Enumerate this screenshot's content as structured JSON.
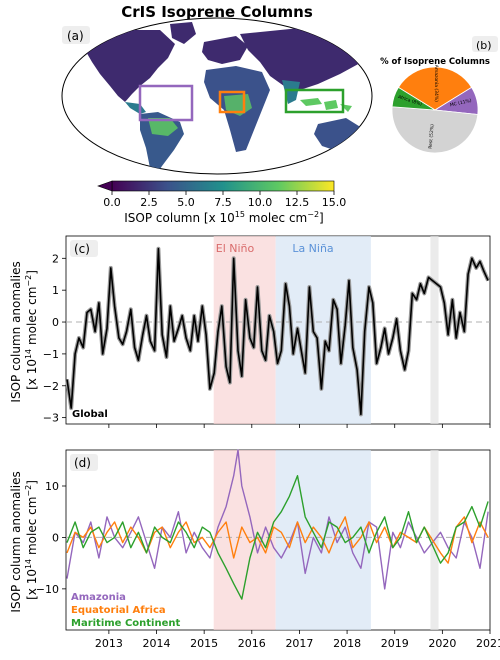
{
  "title": "CrIS Isoprene Columns",
  "panel_a": {
    "label": "(a)",
    "colorbar": {
      "ticks": [
        "0.0",
        "2.5",
        "5.0",
        "7.5",
        "10.0",
        "12.5",
        "15.0"
      ],
      "label_main": "ISOP column [x 10",
      "label_exp": "15",
      "label_units": " molec cm",
      "label_unit_exp": "−2",
      "label_close": "]",
      "colors": [
        "#440154",
        "#3b528b",
        "#21918c",
        "#5ec962",
        "#fde725"
      ]
    },
    "boxes": [
      {
        "name": "Amazonia",
        "color": "#9467bd"
      },
      {
        "name": "Equatorial Africa",
        "color": "#ff7f0e"
      },
      {
        "name": "Maritime Continent",
        "color": "#2ca02c"
      }
    ]
  },
  "panel_b": {
    "label": "(b)",
    "title": "% of Isoprene Columns",
    "slices": [
      {
        "label": "Amazonia",
        "pct_label": "(34%)",
        "value": 34,
        "color": "#ff7f0e"
      },
      {
        "label": "MC (11%)",
        "value": 11,
        "color": "#9467bd"
      },
      {
        "label": "Rest",
        "pct_label": "(52%)",
        "value": 52,
        "color": "#d3d3d3"
      },
      {
        "label": "Africa (8%)",
        "value": 8,
        "color": "#2ca02c"
      }
    ]
  },
  "panel_c": {
    "label": "(c)",
    "ylabel_line1": "ISOP column anomalies",
    "ylabel_line2_pre": "[x 10",
    "ylabel_exp": "14",
    "ylabel_mid": " molec cm",
    "ylabel_exp2": "−2",
    "ylabel_close": "]",
    "series_label": "Global",
    "el_nino": "El Niño",
    "la_nina": "La Niña",
    "yticks": [
      "2",
      "1",
      "0",
      "−1",
      "−2",
      "−3"
    ]
  },
  "panel_d": {
    "label": "(d)",
    "ylabel_line1": "ISOP column anomalies",
    "ylabel_line2_pre": "[x 10",
    "ylabel_exp": "14",
    "ylabel_mid": " molec cm",
    "ylabel_exp2": "−2",
    "ylabel_close": "]",
    "yticks": [
      "10",
      "0",
      "−10"
    ],
    "legend": [
      {
        "name": "Amazonia",
        "color": "#9467bd"
      },
      {
        "name": "Equatorial Africa",
        "color": "#ff7f0e"
      },
      {
        "name": "Maritime Continent",
        "color": "#2ca02c"
      }
    ]
  },
  "xticks": [
    "2013",
    "2014",
    "2015",
    "2016",
    "2017",
    "2018",
    "2019",
    "2020",
    "2021"
  ],
  "chart_data": [
    {
      "type": "pie",
      "title": "% of Isoprene Columns",
      "categories": [
        "Amazonia",
        "MC",
        "Rest",
        "Africa"
      ],
      "values": [
        34,
        11,
        52,
        8
      ]
    },
    {
      "type": "line",
      "xlim": [
        2012.1,
        2021.0
      ],
      "ylim": [
        -3.2,
        2.7
      ],
      "shaded_periods": [
        {
          "label": "El Niño",
          "x": [
            2015.2,
            2016.5
          ],
          "color": "#f8d4d4"
        },
        {
          "label": "La Niña",
          "x": [
            2016.5,
            2018.5
          ],
          "color": "#d6e4f3"
        },
        {
          "label": "",
          "x": [
            2019.75,
            2019.92
          ],
          "color": "#e2e2e2"
        }
      ],
      "series": [
        {
          "name": "Global",
          "color": "#000000",
          "x": [
            2012.12,
            2012.21,
            2012.29,
            2012.37,
            2012.46,
            2012.54,
            2012.62,
            2012.71,
            2012.79,
            2012.87,
            2012.96,
            2013.04,
            2013.12,
            2013.21,
            2013.29,
            2013.37,
            2013.46,
            2013.54,
            2013.62,
            2013.71,
            2013.79,
            2013.87,
            2013.96,
            2014.04,
            2014.12,
            2014.21,
            2014.29,
            2014.37,
            2014.46,
            2014.54,
            2014.62,
            2014.71,
            2014.79,
            2014.87,
            2014.96,
            2015.04,
            2015.12,
            2015.21,
            2015.29,
            2015.37,
            2015.46,
            2015.54,
            2015.62,
            2015.71,
            2015.79,
            2015.87,
            2015.96,
            2016.04,
            2016.12,
            2016.21,
            2016.29,
            2016.37,
            2016.46,
            2016.54,
            2016.62,
            2016.71,
            2016.79,
            2016.87,
            2016.96,
            2017.04,
            2017.12,
            2017.21,
            2017.29,
            2017.37,
            2017.46,
            2017.54,
            2017.62,
            2017.71,
            2017.79,
            2017.87,
            2017.96,
            2018.04,
            2018.12,
            2018.21,
            2018.29,
            2018.37,
            2018.46,
            2018.54,
            2018.62,
            2018.71,
            2018.79,
            2018.87,
            2018.96,
            2019.04,
            2019.12,
            2019.21,
            2019.29,
            2019.37,
            2019.46,
            2019.54,
            2019.62,
            2019.71,
            2019.96,
            2020.04,
            2020.12,
            2020.21,
            2020.29,
            2020.37,
            2020.46,
            2020.54,
            2020.62,
            2020.71,
            2020.79,
            2020.87,
            2020.96
          ],
          "y": [
            -1.8,
            -2.7,
            -1.0,
            -0.5,
            -0.8,
            0.3,
            0.4,
            -0.3,
            0.6,
            -1.0,
            -0.2,
            1.7,
            0.5,
            -0.5,
            -0.7,
            -0.3,
            0.4,
            -0.8,
            -1.2,
            -0.4,
            0.2,
            -0.6,
            -0.9,
            2.3,
            -0.4,
            -1.1,
            0.5,
            -0.6,
            -0.2,
            0.2,
            -0.5,
            -0.9,
            0.2,
            -0.6,
            0.5,
            -0.4,
            -2.1,
            -1.6,
            -0.3,
            0.5,
            -1.4,
            -1.9,
            2.0,
            -0.9,
            -1.7,
            0.7,
            -0.5,
            -0.8,
            1.1,
            -0.9,
            -1.2,
            0.2,
            -0.3,
            -1.3,
            -0.9,
            1.2,
            0.5,
            -1.0,
            -0.2,
            -0.9,
            -1.6,
            1.1,
            -0.3,
            -0.5,
            -2.1,
            -0.6,
            -0.9,
            0.7,
            0.4,
            -1.3,
            -0.1,
            1.3,
            -0.8,
            -1.5,
            -2.9,
            -0.3,
            1.1,
            0.6,
            -1.3,
            -0.8,
            -0.2,
            -1.0,
            -0.5,
            0.1,
            -0.9,
            -1.5,
            -0.9,
            0.9,
            0.7,
            1.2,
            0.9,
            1.4,
            1.1,
            0.6,
            -0.4,
            0.7,
            -0.5,
            0.3,
            -0.3,
            1.5,
            2.0,
            1.7,
            1.9,
            1.6,
            1.3
          ]
        }
      ]
    },
    {
      "type": "line",
      "xlim": [
        2012.1,
        2021.0
      ],
      "ylim": [
        -18,
        17
      ],
      "shaded_periods": [
        {
          "label": "",
          "x": [
            2015.2,
            2016.5
          ],
          "color": "#f8d4d4"
        },
        {
          "label": "",
          "x": [
            2016.5,
            2018.5
          ],
          "color": "#d6e4f3"
        },
        {
          "label": "",
          "x": [
            2019.75,
            2019.92
          ],
          "color": "#e2e2e2"
        }
      ],
      "series": [
        {
          "name": "Amazonia",
          "color": "#9467bd",
          "x": [
            2012.12,
            2012.29,
            2012.46,
            2012.62,
            2012.79,
            2012.96,
            2013.12,
            2013.29,
            2013.46,
            2013.62,
            2013.79,
            2013.96,
            2014.12,
            2014.29,
            2014.46,
            2014.62,
            2014.79,
            2014.96,
            2015.12,
            2015.29,
            2015.46,
            2015.62,
            2015.71,
            2015.79,
            2015.96,
            2016.12,
            2016.29,
            2016.46,
            2016.62,
            2016.79,
            2016.96,
            2017.12,
            2017.29,
            2017.46,
            2017.62,
            2017.79,
            2017.96,
            2018.12,
            2018.29,
            2018.46,
            2018.62,
            2018.79,
            2018.96,
            2019.12,
            2019.29,
            2019.46,
            2019.62,
            2019.96,
            2020.12,
            2020.29,
            2020.46,
            2020.62,
            2020.79,
            2020.96
          ],
          "y": [
            -8,
            1,
            -1,
            3,
            -4,
            4,
            0,
            -2,
            1,
            4,
            -1,
            -6,
            2,
            0,
            5,
            -3,
            1,
            -2,
            -4,
            2,
            6,
            12,
            17,
            10,
            4,
            -3,
            2,
            -2,
            -4,
            -1,
            3,
            -7,
            0,
            -3,
            4,
            -1,
            2,
            -3,
            -6,
            3,
            2,
            -10,
            1,
            -2,
            3,
            0,
            -3,
            1,
            -2,
            -4,
            3,
            0,
            -6,
            5
          ]
        },
        {
          "name": "Equatorial Africa",
          "color": "#ff7f0e",
          "x": [
            2012.12,
            2012.29,
            2012.46,
            2012.62,
            2012.79,
            2012.96,
            2013.12,
            2013.29,
            2013.46,
            2013.62,
            2013.79,
            2013.96,
            2014.12,
            2014.29,
            2014.46,
            2014.62,
            2014.79,
            2014.96,
            2015.12,
            2015.29,
            2015.46,
            2015.62,
            2015.79,
            2015.96,
            2016.12,
            2016.29,
            2016.46,
            2016.62,
            2016.79,
            2016.96,
            2017.12,
            2017.29,
            2017.46,
            2017.62,
            2017.79,
            2017.96,
            2018.12,
            2018.29,
            2018.46,
            2018.62,
            2018.79,
            2018.96,
            2019.12,
            2019.29,
            2019.46,
            2019.62,
            2019.96,
            2020.12,
            2020.29,
            2020.46,
            2020.62,
            2020.79,
            2020.96
          ],
          "y": [
            -3,
            1,
            0,
            2,
            -2,
            1,
            3,
            -1,
            2,
            0,
            -3,
            1,
            2,
            -2,
            1,
            3,
            -1,
            0,
            -2,
            1,
            3,
            -4,
            2,
            -1,
            0,
            -3,
            2,
            1,
            -2,
            3,
            -1,
            2,
            0,
            -3,
            1,
            4,
            -2,
            0,
            3,
            -1,
            2,
            -2,
            1,
            0,
            -1,
            2,
            -3,
            -5,
            2,
            4,
            -1,
            3,
            0
          ]
        },
        {
          "name": "Maritime Continent",
          "color": "#2ca02c",
          "x": [
            2012.12,
            2012.29,
            2012.46,
            2012.62,
            2012.79,
            2012.96,
            2013.12,
            2013.29,
            2013.46,
            2013.62,
            2013.79,
            2013.96,
            2014.12,
            2014.29,
            2014.46,
            2014.62,
            2014.79,
            2014.96,
            2015.12,
            2015.29,
            2015.46,
            2015.62,
            2015.79,
            2015.96,
            2016.12,
            2016.29,
            2016.46,
            2016.62,
            2016.79,
            2016.96,
            2017.12,
            2017.29,
            2017.46,
            2017.62,
            2017.79,
            2017.96,
            2018.12,
            2018.29,
            2018.46,
            2018.62,
            2018.79,
            2018.96,
            2019.12,
            2019.29,
            2019.46,
            2019.62,
            2019.96,
            2020.12,
            2020.29,
            2020.46,
            2020.62,
            2020.79,
            2020.96
          ],
          "y": [
            -1,
            3,
            -2,
            1,
            2,
            -1,
            0,
            3,
            -2,
            1,
            -3,
            2,
            0,
            -1,
            3,
            1,
            -2,
            2,
            1,
            -3,
            -6,
            -9,
            -12,
            -4,
            1,
            -2,
            3,
            5,
            8,
            12,
            4,
            1,
            -2,
            3,
            2,
            -1,
            0,
            2,
            -3,
            1,
            4,
            -2,
            0,
            5,
            -1,
            2,
            -5,
            -3,
            2,
            3,
            6,
            2,
            7
          ]
        }
      ]
    }
  ]
}
